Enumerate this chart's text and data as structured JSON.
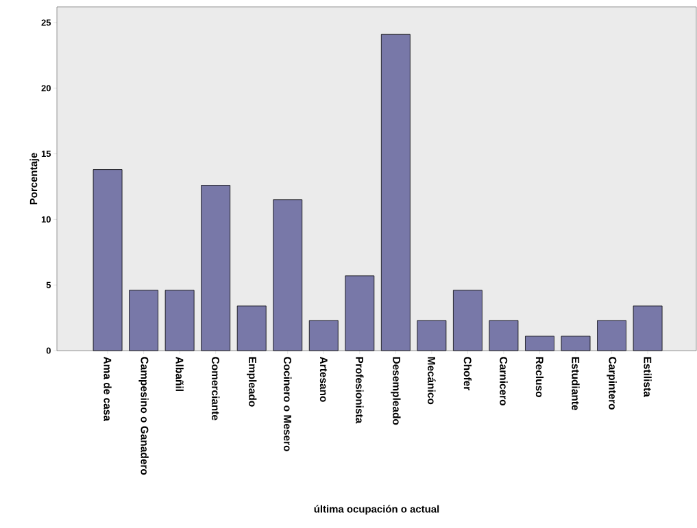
{
  "chart_data": {
    "type": "bar",
    "categories": [
      "Ama de casa",
      "Campesino o Ganadero",
      "Albañil",
      "Comerciante",
      "Empleado",
      "Cocinero o Mesero",
      "Artesano",
      "Profesionista",
      "Desempleado",
      "Mecánico",
      "Chofer",
      "Carnicero",
      "Recluso",
      "Estudiante",
      "Carpintero",
      "Estilista"
    ],
    "values": [
      13.8,
      4.6,
      4.6,
      12.6,
      3.4,
      11.5,
      2.3,
      5.7,
      24.1,
      2.3,
      4.6,
      2.3,
      1.1,
      1.1,
      2.3,
      3.4
    ],
    "color": "#7878a8",
    "ylim": [
      0,
      26.2
    ],
    "yticks": [
      0,
      5,
      10,
      15,
      20,
      25
    ],
    "xlabel": "última ocupación o actual",
    "ylabel": "Porcentaje"
  }
}
